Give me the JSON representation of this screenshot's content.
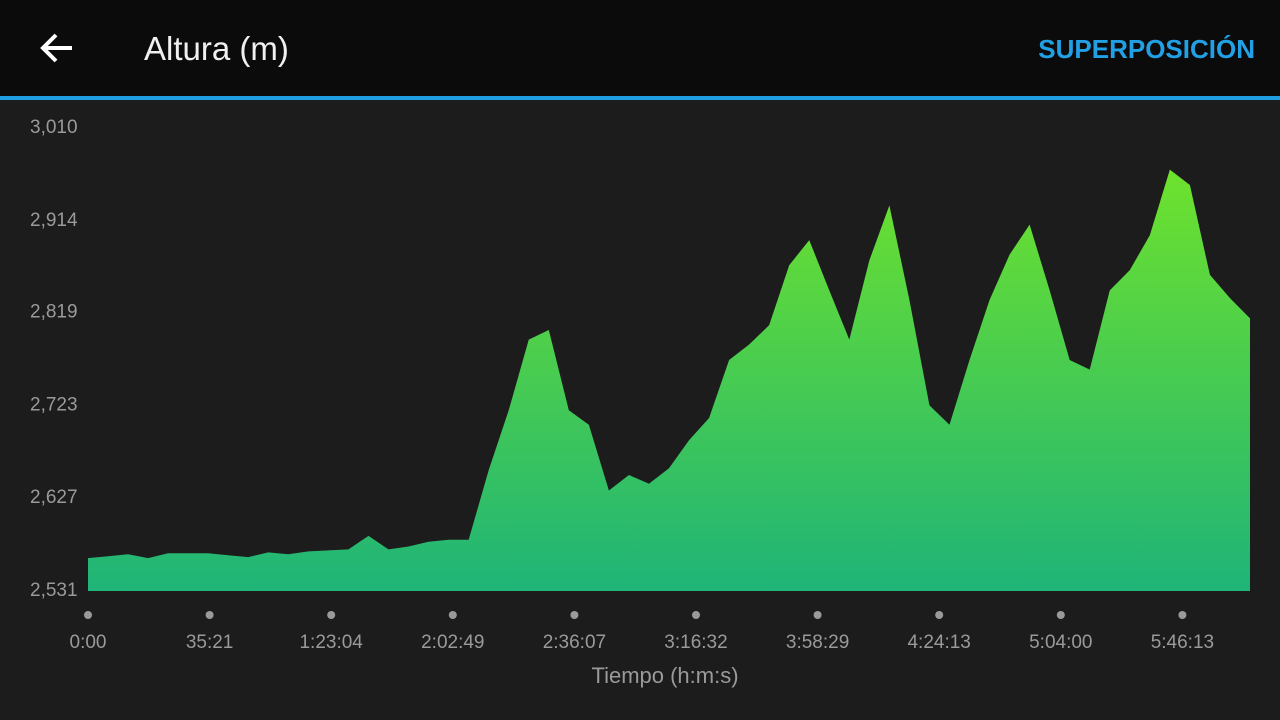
{
  "header": {
    "title": "Altura (m)",
    "action": "SUPERPOSICIÓN"
  },
  "chart_data": {
    "type": "area",
    "x_label": "Tiempo (h:m:s)",
    "x_labels": [
      "0:00",
      "35:21",
      "1:23:04",
      "2:02:49",
      "2:36:07",
      "3:16:32",
      "3:58:29",
      "4:24:13",
      "5:04:00",
      "5:46:13"
    ],
    "values": [
      2565,
      2567,
      2569,
      2565,
      2570,
      2570,
      2570,
      2568,
      2566,
      2571,
      2569,
      2572,
      2573,
      2574,
      2588,
      2574,
      2577,
      2582,
      2584,
      2584,
      2656,
      2718,
      2791,
      2801,
      2718,
      2703,
      2635,
      2651,
      2642,
      2658,
      2687,
      2710,
      2770,
      2786,
      2806,
      2868,
      2894,
      2842,
      2791,
      2873,
      2930,
      2832,
      2723,
      2703,
      2770,
      2832,
      2879,
      2910,
      2842,
      2770,
      2760,
      2842,
      2863,
      2899,
      2967,
      2951,
      2858,
      2834,
      2813
    ],
    "ylim": [
      2531,
      3010
    ],
    "yticks": [
      {
        "value": 2531,
        "label": "2,531"
      },
      {
        "value": 2627,
        "label": "2,627"
      },
      {
        "value": 2723,
        "label": "2,723"
      },
      {
        "value": 2819,
        "label": "2,819"
      },
      {
        "value": 2914,
        "label": "2,914"
      },
      {
        "value": 3010,
        "label": "3,010"
      }
    ],
    "color_top": "#6ee22c",
    "color_bottom": "#1fb478"
  }
}
